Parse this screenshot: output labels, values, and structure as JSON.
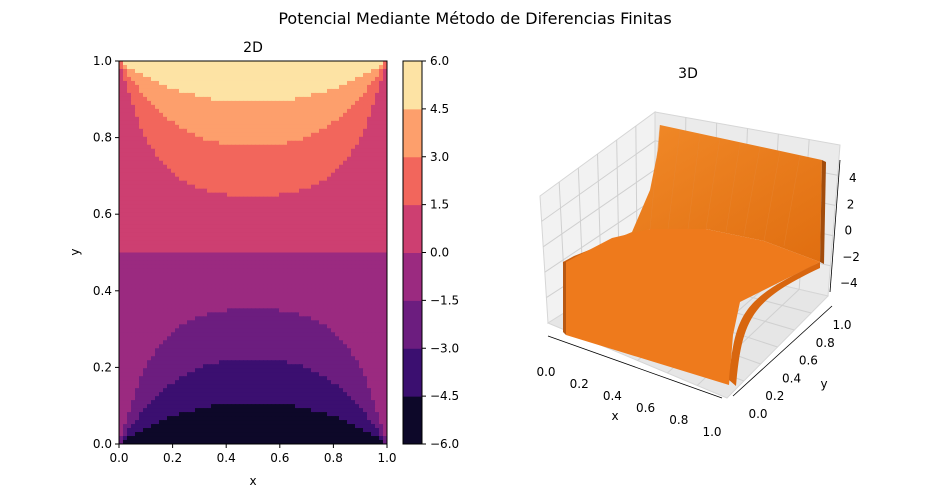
{
  "figure": {
    "title": "Potencial Mediante Método de Diferencias Finitas"
  },
  "chart_data": [
    {
      "type": "contourf",
      "title": "2D",
      "xlabel": "x",
      "ylabel": "y",
      "xlim": [
        0.0,
        1.0
      ],
      "ylim": [
        0.0,
        1.0
      ],
      "xticks": [
        "0.0",
        "0.2",
        "0.4",
        "0.6",
        "0.8",
        "1.0"
      ],
      "yticks": [
        "0.0",
        "0.2",
        "0.4",
        "0.6",
        "0.8",
        "1.0"
      ],
      "boundary": {
        "top": 6,
        "bottom": -6,
        "left": 0,
        "right": 0
      },
      "colormap": "magma",
      "levels": [
        -6.0,
        -4.5,
        -3.0,
        -1.5,
        0.0,
        1.5,
        3.0,
        4.5,
        6.0
      ],
      "level_colors": [
        "#0d0829",
        "#3b0f70",
        "#6c1d7f",
        "#9b2a80",
        "#cd3f71",
        "#f2665c",
        "#fd9f6c",
        "#fde3a4"
      ],
      "colorbar": {
        "ticks": [
          "6.0",
          "4.5",
          "3.0",
          "1.5",
          "0.0",
          "−1.5",
          "−3.0",
          "−4.5",
          "−6.0"
        ],
        "range": [
          -6.0,
          6.0
        ]
      }
    },
    {
      "type": "surface3d",
      "title": "3D",
      "xlabel": "x",
      "ylabel": "y",
      "zlim": [
        -5,
        5
      ],
      "xticks": [
        "0.0",
        "0.2",
        "0.4",
        "0.6",
        "0.8",
        "1.0"
      ],
      "yticks": [
        "0.0",
        "0.2",
        "0.4",
        "0.6",
        "0.8",
        "1.0"
      ],
      "zticks": [
        "4",
        "2",
        "0",
        "−2",
        "−4"
      ],
      "surface_color": "#f07a1a",
      "grid": true
    }
  ]
}
